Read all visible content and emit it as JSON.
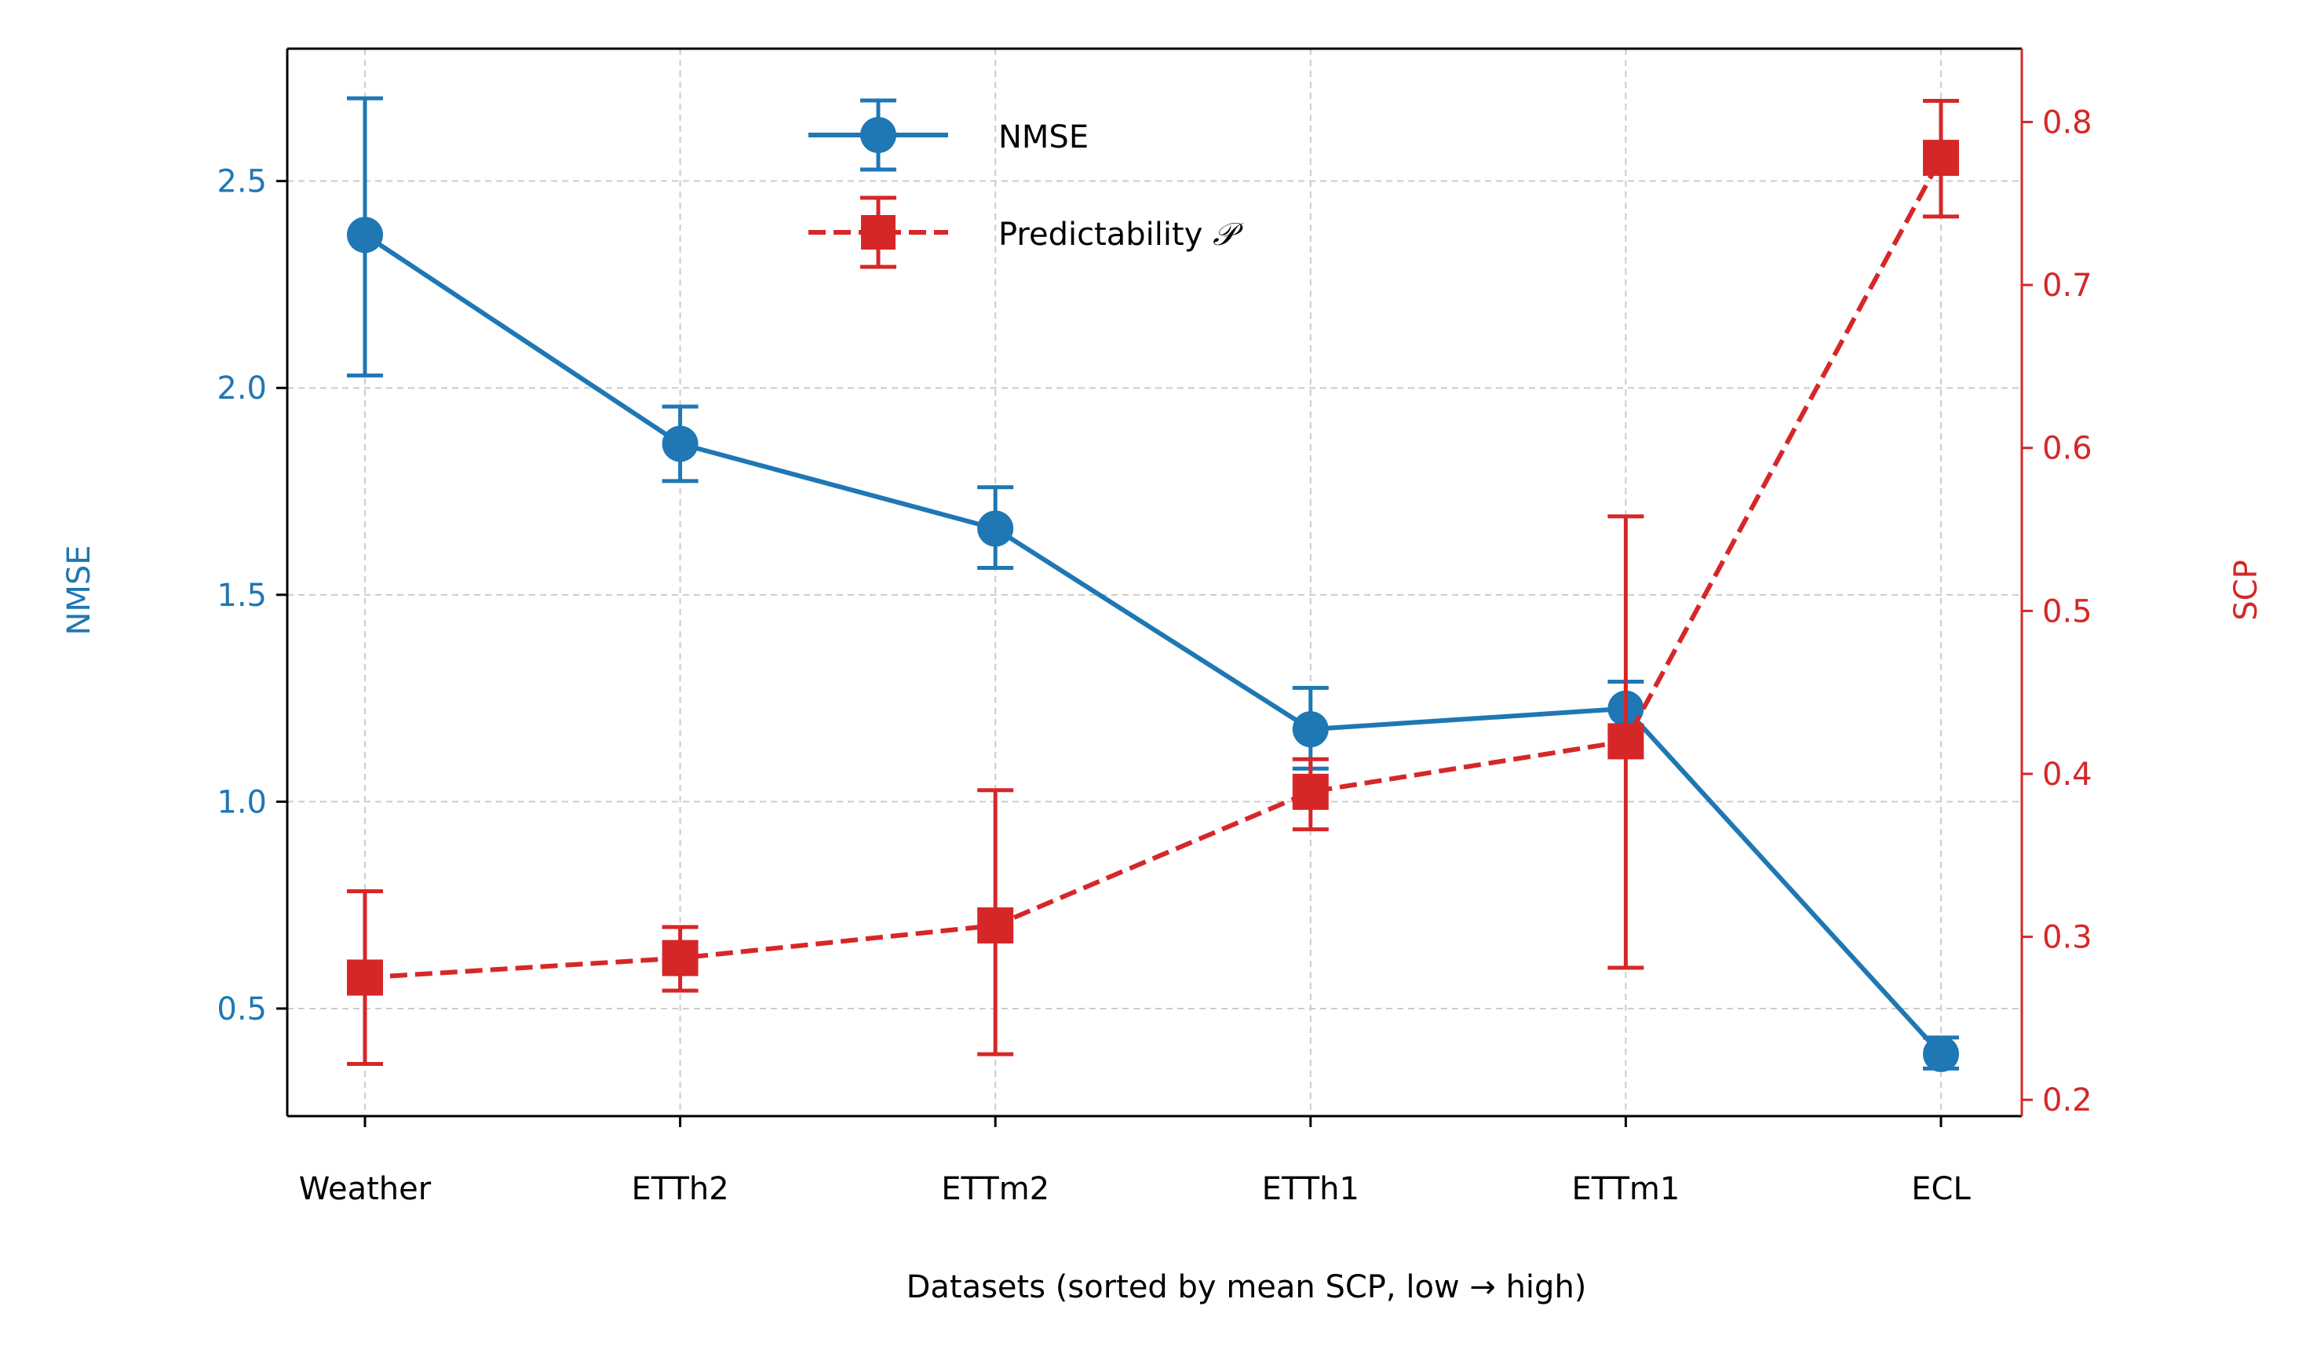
{
  "chart_data": {
    "type": "line",
    "categories": [
      "Weather",
      "ETTh2",
      "ETTm2",
      "ETTh1",
      "ETTm1",
      "ECL"
    ],
    "xlabel": "Datasets (sorted by mean SCP, low → high)",
    "y_left": {
      "label": "NMSE",
      "lim": [
        0.24,
        2.82
      ],
      "ticks": [
        0.5,
        1.0,
        1.5,
        2.0,
        2.5
      ],
      "tick_labels": [
        "0.5",
        "1.0",
        "1.5",
        "2.0",
        "2.5"
      ]
    },
    "y_right": {
      "label": "SCP",
      "lim": [
        0.19,
        0.845
      ],
      "ticks": [
        0.2,
        0.3,
        0.4,
        0.5,
        0.6,
        0.7,
        0.8
      ],
      "tick_labels": [
        "0.2",
        "0.3",
        "0.4",
        "0.5",
        "0.6",
        "0.7",
        "0.8"
      ]
    },
    "grid": true,
    "legend": {
      "placement": "upper center",
      "nmse_label": "NMSE",
      "pred_label_prefix": "Predictability ",
      "pred_label_symbol": "𝒫"
    },
    "series": [
      {
        "name": "NMSE",
        "axis": "left",
        "color": "#1f77b4",
        "marker": "circle",
        "linestyle": "solid",
        "values": [
          2.37,
          1.865,
          1.66,
          1.175,
          1.225,
          0.39
        ],
        "err_low": [
          2.03,
          1.775,
          1.565,
          1.08,
          1.165,
          0.355
        ],
        "err_high": [
          2.7,
          1.955,
          1.76,
          1.275,
          1.29,
          0.43
        ]
      },
      {
        "name": "Predictability P",
        "axis": "right",
        "color": "#d62728",
        "marker": "square",
        "linestyle": "dashed",
        "values": [
          0.275,
          0.287,
          0.307,
          0.389,
          0.42,
          0.778
        ],
        "err_low": [
          0.222,
          0.267,
          0.228,
          0.366,
          0.281,
          0.742
        ],
        "err_high": [
          0.328,
          0.306,
          0.39,
          0.409,
          0.558,
          0.813
        ]
      }
    ]
  }
}
